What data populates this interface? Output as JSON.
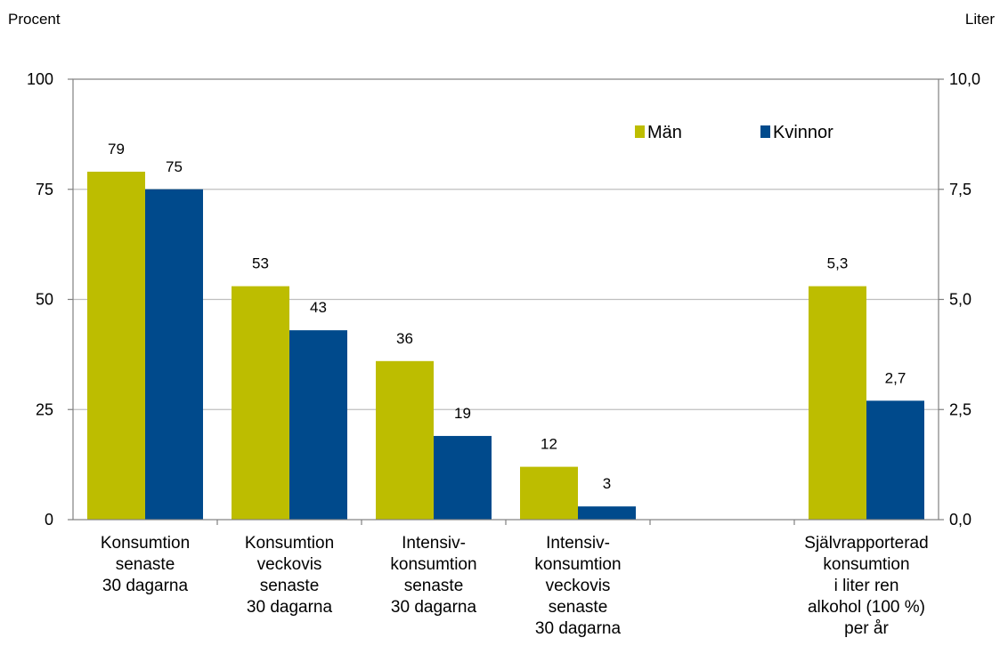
{
  "chart_data": {
    "type": "bar",
    "title": "",
    "left_axis": {
      "label": "Procent",
      "range": [
        0,
        100
      ],
      "ticks": [
        "0",
        "25",
        "50",
        "75",
        "100"
      ]
    },
    "right_axis": {
      "label": "Liter",
      "range": [
        0,
        10
      ],
      "ticks": [
        "0,0",
        "2,5",
        "5,0",
        "7,5",
        "10,0"
      ]
    },
    "grid": true,
    "legend_position": "top-right",
    "series": [
      {
        "name": "Män",
        "color": "#BDBD00"
      },
      {
        "name": "Kvinnor",
        "color": "#004A8C"
      }
    ],
    "categories": [
      {
        "label_lines": [
          "Konsumtion",
          "senaste",
          "30 dagarna"
        ],
        "axis": "left",
        "values": [
          79,
          75
        ],
        "value_labels": [
          "79",
          "75"
        ]
      },
      {
        "label_lines": [
          "Konsumtion",
          "veckovis",
          "senaste",
          "30 dagarna"
        ],
        "axis": "left",
        "values": [
          53,
          43
        ],
        "value_labels": [
          "53",
          "43"
        ]
      },
      {
        "label_lines": [
          "Intensiv-",
          "konsumtion",
          "senaste",
          "30 dagarna"
        ],
        "axis": "left",
        "values": [
          36,
          19
        ],
        "value_labels": [
          "36",
          "19"
        ]
      },
      {
        "label_lines": [
          "Intensiv-",
          "konsumtion",
          "veckovis",
          "senaste",
          "30 dagarna"
        ],
        "axis": "left",
        "values": [
          12,
          3
        ],
        "value_labels": [
          "12",
          "3"
        ]
      },
      {
        "label_lines": [],
        "axis": "left",
        "values": [],
        "value_labels": []
      },
      {
        "label_lines": [
          "Självrapporterad",
          "konsumtion",
          "i liter ren",
          "alkohol (100 %)",
          "per år"
        ],
        "axis": "right",
        "values": [
          5.3,
          2.7
        ],
        "value_labels": [
          "5,3",
          "2,7"
        ]
      }
    ]
  }
}
